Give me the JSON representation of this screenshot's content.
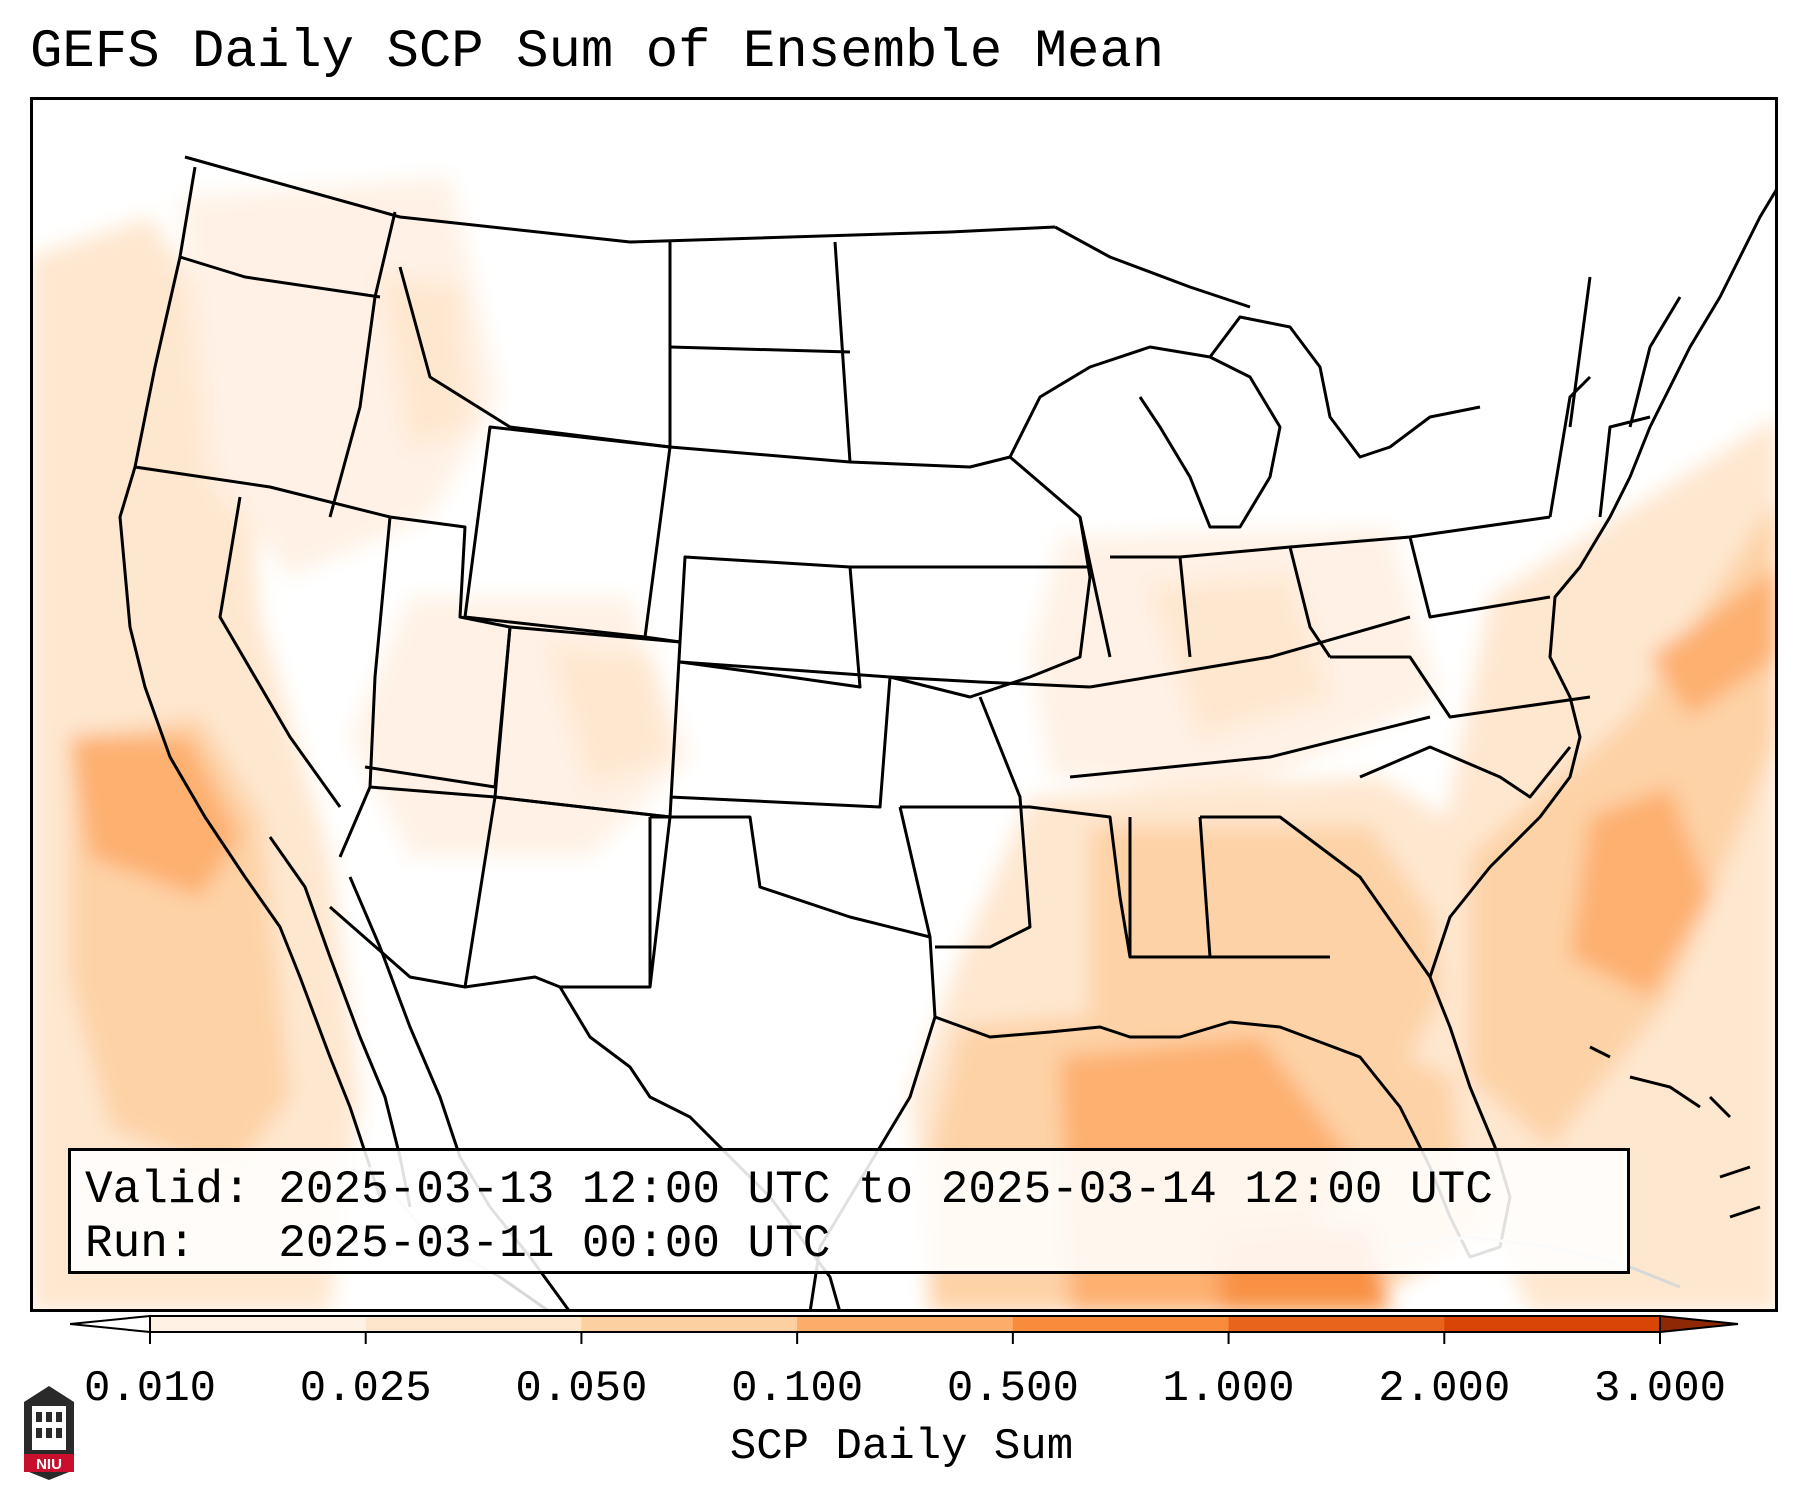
{
  "title": "GEFS Daily SCP Sum of Ensemble Mean",
  "info_box": {
    "valid_label": "Valid:",
    "valid_value": "2025-03-13 12:00 UTC to 2025-03-14 12:00 UTC",
    "run_label": "Run:",
    "run_value": "2025-03-11 00:00 UTC"
  },
  "colorbar": {
    "label": "SCP Daily Sum",
    "ticks": [
      "0.010",
      "0.025",
      "0.050",
      "0.100",
      "0.500",
      "1.000",
      "2.000",
      "3.000"
    ],
    "colors": [
      "#fff1e4",
      "#fee6cd",
      "#fdd0a2",
      "#fdac69",
      "#f88c3b",
      "#e8631c",
      "#d84506",
      "#b33103"
    ],
    "under_color": "#ffffff",
    "over_color": "#8f2804"
  },
  "map": {
    "field": "SCP Daily Sum",
    "regions": [
      {
        "name": "Gulf of Mexico / Deep South",
        "level": "0.050-0.500"
      },
      {
        "name": "Western Atlantic off Southeast coast",
        "level": "0.050-0.500"
      },
      {
        "name": "Pacific off California",
        "level": "0.025-0.100"
      },
      {
        "name": "Ohio Valley / Midwest",
        "level": "0.010-0.050"
      }
    ]
  },
  "logo": {
    "text": "NIU"
  }
}
